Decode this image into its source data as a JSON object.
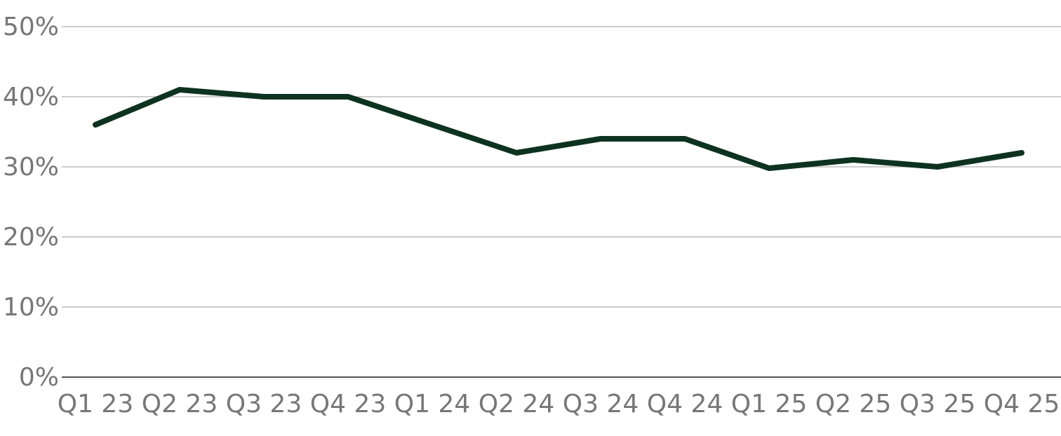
{
  "chart_data": {
    "type": "line",
    "categories": [
      "Q1 23",
      "Q2 23",
      "Q3 23",
      "Q4 23",
      "Q1 24",
      "Q2 24",
      "Q3 24",
      "Q4 24",
      "Q1 25",
      "Q2 25",
      "Q3 25",
      "Q4 25"
    ],
    "values": [
      36,
      41,
      40,
      40,
      36,
      32,
      34,
      34,
      29.8,
      31,
      30,
      32
    ],
    "color": "#0d3320",
    "ylim": [
      0,
      50
    ],
    "yticks": [
      {
        "value": 0,
        "label": "0%"
      },
      {
        "value": 10,
        "label": "10%"
      },
      {
        "value": 20,
        "label": "20%"
      },
      {
        "value": 30,
        "label": "30%"
      },
      {
        "value": 40,
        "label": "40%"
      },
      {
        "value": 50,
        "label": "50%"
      }
    ],
    "grid": true
  }
}
